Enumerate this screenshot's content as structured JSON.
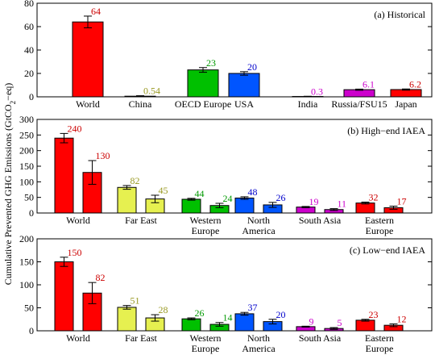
{
  "ylabel_main": "Cumulative Prevented GHG Emissions (GtCO",
  "ylabel_sub": "2",
  "ylabel_end": "−eq)",
  "colors": {
    "red": "#ff0000",
    "olive": "#a6a64d",
    "green": "#00c000",
    "blue": "#0055ff",
    "purple": "#cc00cc",
    "magenta": "#ff00ff",
    "yellowgreen": "#e6f050",
    "darkred": "#cc0000",
    "darkolive": "#999922",
    "darkgreen": "#009900",
    "darkblue": "#0000cc"
  },
  "chart_data": [
    {
      "type": "bar",
      "title": "(a) Historical",
      "ylim": [
        0,
        80
      ],
      "yticks": [
        0,
        20,
        40,
        60,
        80
      ],
      "categories": [
        "World",
        "China",
        "OECD Europe",
        "USA",
        "India",
        "Russia/FSU15",
        "Japan"
      ],
      "values": [
        64,
        0.54,
        23,
        20,
        0.3,
        6.1,
        6.2
      ],
      "labels": [
        "64",
        "0.54",
        "23",
        "20",
        "0.3",
        "6.1",
        "6.2"
      ],
      "errors": [
        5,
        0.4,
        2,
        1.5,
        0.2,
        0.5,
        0.5
      ],
      "bar_colors": [
        "#ff0000",
        "#e6f050",
        "#00c000",
        "#0055ff",
        "#cc00cc",
        "#cc00cc",
        "#ff0000"
      ],
      "label_colors": [
        "#cc0000",
        "#999922",
        "#009900",
        "#0000cc",
        "#cc00cc",
        "#cc00cc",
        "#cc0000"
      ]
    },
    {
      "type": "bar",
      "title": "(b) High−end IAEA",
      "ylim": [
        0,
        300
      ],
      "yticks": [
        0,
        50,
        100,
        150,
        200,
        250,
        300
      ],
      "categories": [
        "World",
        "Far East",
        "Western\nEurope",
        "North\nAmerica",
        "South Asia",
        "Eastern\nEurope"
      ],
      "values": [
        240,
        130,
        82,
        45,
        44,
        24,
        48,
        26,
        19,
        11,
        32,
        17
      ],
      "labels": [
        "240",
        "130",
        "82",
        "45",
        "44",
        "24",
        "48",
        "26",
        "19",
        "11",
        "32",
        "17"
      ],
      "errors": [
        15,
        38,
        6,
        12,
        3,
        7,
        4,
        8,
        2,
        3,
        3,
        5
      ],
      "bar_colors": [
        "#ff0000",
        "#ff0000",
        "#e6f050",
        "#e6f050",
        "#00c000",
        "#00c000",
        "#0055ff",
        "#0055ff",
        "#cc00cc",
        "#cc00cc",
        "#ff0000",
        "#ff0000"
      ],
      "label_colors": [
        "#cc0000",
        "#cc0000",
        "#999922",
        "#999922",
        "#009900",
        "#009900",
        "#0000cc",
        "#0000cc",
        "#cc00cc",
        "#cc00cc",
        "#cc0000",
        "#cc0000"
      ]
    },
    {
      "type": "bar",
      "title": "(c) Low−end IAEA",
      "ylim": [
        0,
        200
      ],
      "yticks": [
        0,
        50,
        100,
        150,
        200
      ],
      "categories": [
        "World",
        "Far East",
        "Western\nEurope",
        "North\nAmerica",
        "South Asia",
        "Eastern\nEurope"
      ],
      "values": [
        150,
        82,
        51,
        28,
        26,
        14,
        37,
        20,
        9,
        5,
        23,
        12
      ],
      "labels": [
        "150",
        "82",
        "51",
        "28",
        "26",
        "14",
        "37",
        "20",
        "9",
        "5",
        "23",
        "12"
      ],
      "errors": [
        10,
        23,
        4,
        7,
        2,
        4,
        3,
        5,
        1,
        2,
        2,
        3
      ],
      "bar_colors": [
        "#ff0000",
        "#ff0000",
        "#e6f050",
        "#e6f050",
        "#00c000",
        "#00c000",
        "#0055ff",
        "#0055ff",
        "#cc00cc",
        "#cc00cc",
        "#ff0000",
        "#ff0000"
      ],
      "label_colors": [
        "#cc0000",
        "#cc0000",
        "#999922",
        "#999922",
        "#009900",
        "#009900",
        "#0000cc",
        "#0000cc",
        "#cc00cc",
        "#cc00cc",
        "#cc0000",
        "#cc0000"
      ]
    }
  ]
}
